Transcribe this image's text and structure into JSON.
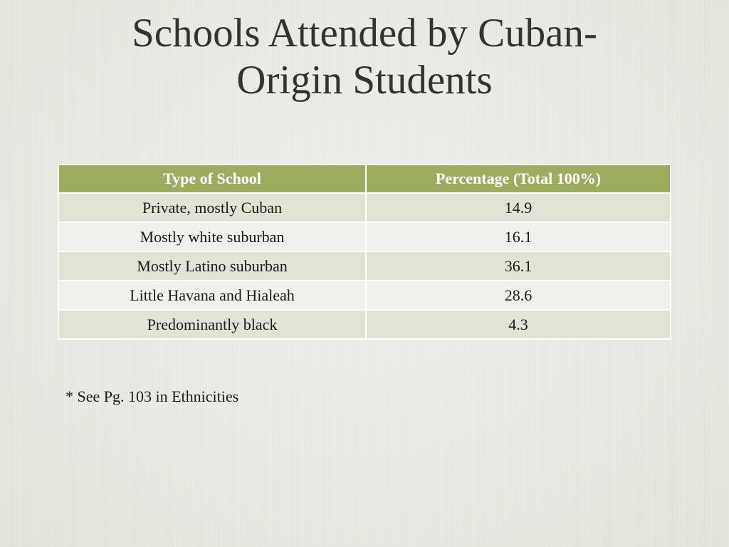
{
  "slide": {
    "title_line1": "Schools Attended by Cuban-",
    "title_line2": "Origin Students",
    "footnote": "* See Pg. 103 in Ethnicities"
  },
  "table": {
    "headers": [
      "Type of School",
      "Percentage (Total 100%)"
    ],
    "rows": [
      {
        "type": "Private, mostly Cuban",
        "percentage": "14.9"
      },
      {
        "type": "Mostly white suburban",
        "percentage": "16.1"
      },
      {
        "type": "Mostly Latino suburban",
        "percentage": "36.1"
      },
      {
        "type": "Little Havana and Hialeah",
        "percentage": "28.6"
      },
      {
        "type": "Predominantly black",
        "percentage": "4.3"
      }
    ]
  },
  "colors": {
    "header_bg": "#9cad61",
    "row_odd_bg": "#dfe4d4",
    "row_even_bg": "#eff1ea",
    "slide_bg": "#e9eae3"
  }
}
